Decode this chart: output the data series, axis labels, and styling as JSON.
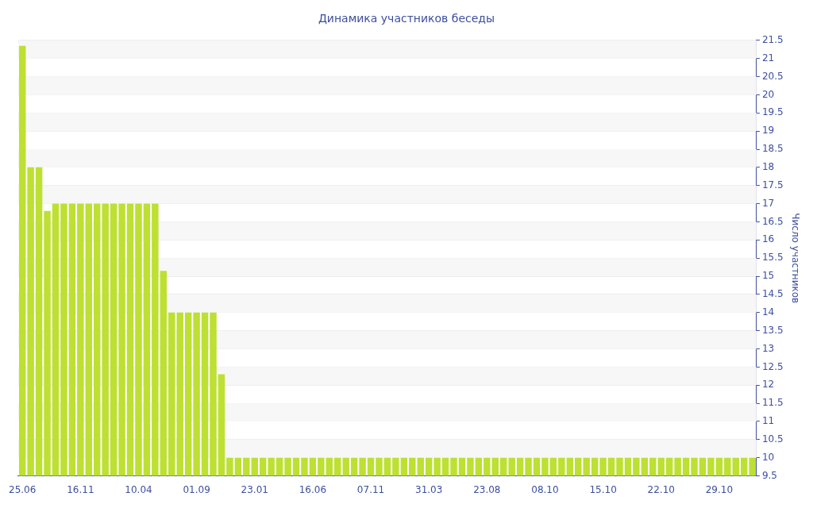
{
  "chart_data": {
    "type": "bar",
    "title": "Динамика участников беседы",
    "ylabel": "Число участников",
    "categories": [
      "25.06",
      null,
      null,
      null,
      null,
      null,
      null,
      "16.11",
      null,
      null,
      null,
      null,
      null,
      null,
      "10.04",
      null,
      null,
      null,
      null,
      null,
      null,
      "01.09",
      null,
      null,
      null,
      null,
      null,
      null,
      "23.01",
      null,
      null,
      null,
      null,
      null,
      null,
      "16.06",
      null,
      null,
      null,
      null,
      null,
      null,
      "07.11",
      null,
      null,
      null,
      null,
      null,
      null,
      "31.03",
      null,
      null,
      null,
      null,
      null,
      null,
      "23.08",
      null,
      null,
      null,
      null,
      null,
      null,
      "08.10",
      null,
      null,
      null,
      null,
      null,
      null,
      "15.10",
      null,
      null,
      null,
      null,
      null,
      null,
      "22.10",
      null,
      null,
      null,
      null,
      null,
      null,
      "29.10",
      null,
      null,
      null,
      null
    ],
    "values": [
      21.35,
      18,
      18,
      16.8,
      17,
      17,
      17,
      17,
      17,
      17,
      17,
      17,
      17,
      17,
      17,
      17,
      17,
      15.15,
      14,
      14,
      14,
      14,
      14,
      14,
      12.3,
      10,
      10,
      10,
      10,
      10,
      10,
      10,
      10,
      10,
      10,
      10,
      10,
      10,
      10,
      10,
      10,
      10,
      10,
      10,
      10,
      10,
      10,
      10,
      10,
      10,
      10,
      10,
      10,
      10,
      10,
      10,
      10,
      10,
      10,
      10,
      10,
      10,
      10,
      10,
      10,
      10,
      10,
      10,
      10,
      10,
      10,
      10,
      10,
      10,
      10,
      10,
      10,
      10,
      10,
      10,
      10,
      10,
      10,
      10,
      10,
      10,
      10,
      10,
      10
    ],
    "color": "#bde032",
    "ylim": [
      9.5,
      21.5
    ],
    "yticks": [
      9.5,
      10,
      10.5,
      11,
      11.5,
      12,
      12.5,
      13,
      13.5,
      14,
      14.5,
      15,
      15.5,
      16,
      16.5,
      17,
      17.5,
      18,
      18.5,
      19,
      19.5,
      20,
      20.5,
      21,
      21.5
    ],
    "grid": "y",
    "legend": false
  }
}
